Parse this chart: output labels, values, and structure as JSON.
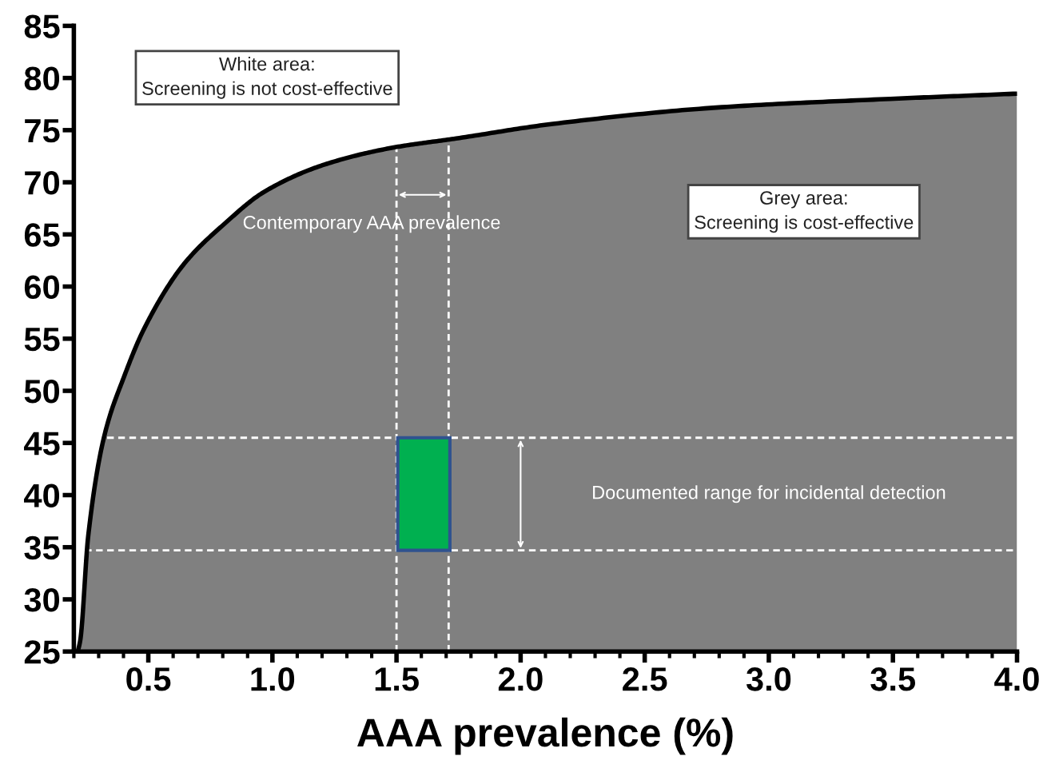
{
  "chart_data": {
    "type": "area",
    "xlabel": "AAA prevalence (%)",
    "xlim": [
      0.2,
      4.0
    ],
    "ylim": [
      25,
      85
    ],
    "xticks": [
      0.5,
      {
        "value": 1.0,
        "label": "1.0"
      },
      1.5,
      {
        "value": 2.0,
        "label": "2.0"
      },
      2.5,
      {
        "value": 3.0,
        "label": "3.0"
      },
      3.5,
      {
        "value": 4.0,
        "label": "4.0"
      }
    ],
    "yticks": [
      25,
      30,
      35,
      40,
      45,
      50,
      55,
      60,
      65,
      70,
      75,
      80,
      85
    ],
    "grid": false,
    "series": [
      {
        "color": "#808080",
        "x": [
          0.216,
          0.226,
          0.258,
          0.323,
          0.403,
          0.484,
          0.645,
          0.806,
          0.968,
          1.21,
          1.48,
          1.74,
          2.13,
          2.81,
          3.49,
          4.0
        ],
        "values": [
          25,
          26.1,
          36.1,
          45.7,
          51.4,
          56.0,
          62.2,
          66.0,
          69.1,
          71.7,
          73.3,
          74.2,
          75.6,
          77.2,
          78.0,
          78.5
        ]
      },
      {
        "type": "bar",
        "color": "#00b050",
        "x": [
          1.61
        ],
        "base": [
          34.7
        ],
        "values": [
          10.8
        ]
      }
    ],
    "ref_lines": [
      {
        "axis": "x",
        "value": 1.5,
        "color": "#ffffff",
        "line_style": "dashed"
      },
      {
        "axis": "x",
        "value": 1.71,
        "color": "#ffffff",
        "line_style": "dashed"
      },
      {
        "axis": "y",
        "value": 45.5,
        "color": "#ffffff",
        "line_style": "dashed"
      },
      {
        "axis": "y",
        "value": 34.7,
        "color": "#ffffff",
        "line_style": "dashed"
      }
    ],
    "annotations": [
      "White area:\nScreening is not cost-effective",
      "Grey area:\nScreening is cost-effective",
      "Contemporary AAA prevalence",
      "Documented range for incidental detection"
    ]
  }
}
